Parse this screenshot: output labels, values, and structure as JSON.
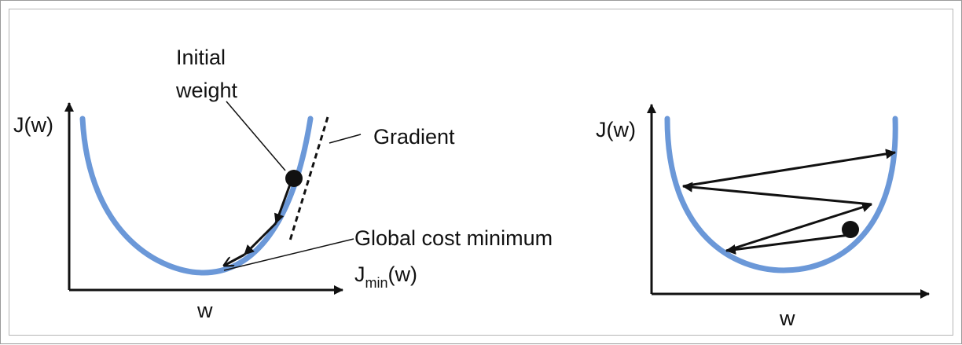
{
  "left_panel": {
    "y_axis_label": "J(w)",
    "x_axis_label": "w",
    "initial_weight_line1": "Initial",
    "initial_weight_line2": "weight",
    "gradient_label": "Gradient",
    "global_min_label": "Global cost minimum",
    "jmin_main": "J",
    "jmin_sub": "min",
    "jmin_suffix": "(w)"
  },
  "right_panel": {
    "y_axis_label": "J(w)",
    "x_axis_label": "w"
  },
  "colors": {
    "curve": "#6b98d8",
    "ink": "#111111"
  }
}
